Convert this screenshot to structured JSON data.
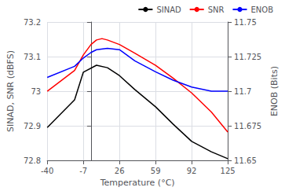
{
  "chart_data": {
    "type": "line",
    "xlabel": "Temperature (°C)",
    "ylabel": "SINAD, SNR (dBFS)",
    "y2label": "ENOB (Bits)",
    "xlim": [
      -40,
      125
    ],
    "xticks": [
      -40,
      -7,
      26,
      59,
      92,
      125
    ],
    "ylim": [
      72.8,
      73.2
    ],
    "yticks": [
      72.8,
      72.9,
      73,
      73.1,
      73.2
    ],
    "y2lim": [
      11.65,
      11.75
    ],
    "y2ticks": [
      11.65,
      11.675,
      11.7,
      11.725,
      11.75
    ],
    "grid": true,
    "legend": "upper right",
    "series": [
      {
        "name": "SINAD",
        "color": "#000000",
        "x": [
          -40,
          -15,
          -7,
          5,
          15,
          26,
          40,
          59,
          75,
          92,
          110,
          125
        ],
        "values": [
          72.895,
          72.975,
          73.055,
          73.075,
          73.068,
          73.045,
          73.005,
          72.955,
          72.905,
          72.855,
          72.825,
          72.805
        ]
      },
      {
        "name": "SNR",
        "color": "#ff0000",
        "x": [
          -40,
          -15,
          -7,
          0,
          5,
          10,
          15,
          26,
          40,
          59,
          75,
          92,
          110,
          125
        ],
        "values": [
          73.0,
          73.06,
          73.105,
          73.135,
          73.148,
          73.152,
          73.148,
          73.135,
          73.11,
          73.075,
          73.038,
          72.995,
          72.94,
          72.882
        ]
      },
      {
        "name": "ENOB",
        "color": "#0000ff",
        "axis": "y2",
        "x": [
          -40,
          -15,
          -7,
          0,
          5,
          15,
          26,
          40,
          59,
          75,
          92,
          110,
          125
        ],
        "values": [
          11.71,
          11.718,
          11.724,
          11.728,
          11.73,
          11.731,
          11.73,
          11.722,
          11.714,
          11.708,
          11.703,
          11.7,
          11.7
        ]
      }
    ]
  }
}
